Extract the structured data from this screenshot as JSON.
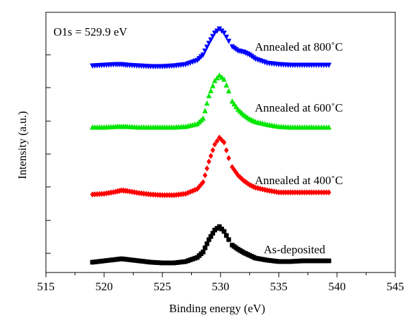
{
  "chart_data": {
    "type": "scatter",
    "title": "",
    "xlabel": "Binding energy (eV)",
    "ylabel": "Intensity (a.u.)",
    "xlim": [
      515,
      545
    ],
    "x_ticks": [
      "515",
      "520",
      "525",
      "530",
      "535",
      "540",
      "545"
    ],
    "y_tick_labels": false,
    "grid": false,
    "annotation": "O1s = 529.9 eV",
    "series": [
      {
        "name": "As-deposited",
        "color": "#000000",
        "marker": "square",
        "x": [
          519,
          520,
          521,
          521.5,
          522,
          523,
          524,
          525,
          526,
          527,
          528,
          528.5,
          529,
          529.5,
          529.9,
          530.3,
          530.7,
          531,
          531.5,
          532,
          532.5,
          533,
          534,
          535,
          536,
          537,
          538,
          539.3
        ],
        "y": [
          0.05,
          0.07,
          0.09,
          0.1,
          0.09,
          0.07,
          0.05,
          0.04,
          0.04,
          0.06,
          0.12,
          0.2,
          0.38,
          0.52,
          0.57,
          0.5,
          0.38,
          0.3,
          0.24,
          0.19,
          0.15,
          0.11,
          0.08,
          0.06,
          0.06,
          0.07,
          0.07,
          0.07
        ]
      },
      {
        "name": "Annealed at 400˚C",
        "color": "#ff0000",
        "marker": "diamond",
        "x": [
          519,
          520,
          521,
          521.5,
          522,
          523,
          524,
          525,
          526,
          527,
          528,
          528.5,
          529,
          529.5,
          529.9,
          530.3,
          530.7,
          531,
          531.5,
          532,
          532.5,
          533,
          534,
          535,
          536,
          537,
          538,
          539.3
        ],
        "y": [
          0.02,
          0.03,
          0.06,
          0.08,
          0.07,
          0.04,
          0.02,
          0.01,
          0.01,
          0.03,
          0.1,
          0.2,
          0.5,
          0.75,
          0.85,
          0.78,
          0.55,
          0.42,
          0.3,
          0.22,
          0.16,
          0.12,
          0.08,
          0.05,
          0.05,
          0.05,
          0.05,
          0.05
        ]
      },
      {
        "name": "Annealed at 600˚C",
        "color": "#00e600",
        "marker": "triangle-up",
        "x": [
          519,
          520,
          521,
          521.5,
          522,
          523,
          524,
          525,
          526,
          527,
          528,
          528.5,
          529,
          529.5,
          529.9,
          530.3,
          530.7,
          531,
          531.5,
          532,
          532.5,
          533,
          534,
          535,
          536,
          537,
          538,
          539.3
        ],
        "y": [
          0.02,
          0.02,
          0.03,
          0.03,
          0.03,
          0.02,
          0.02,
          0.02,
          0.02,
          0.03,
          0.07,
          0.15,
          0.48,
          0.7,
          0.78,
          0.72,
          0.55,
          0.4,
          0.28,
          0.2,
          0.14,
          0.1,
          0.06,
          0.03,
          0.02,
          0.02,
          0.02,
          0.02
        ]
      },
      {
        "name": "Annealed at 800˚C",
        "color": "#0000ff",
        "marker": "triangle-down",
        "x": [
          519,
          520,
          521,
          521.5,
          522,
          523,
          524,
          525,
          526,
          527,
          528,
          528.5,
          529,
          529.5,
          529.9,
          530.3,
          530.7,
          531,
          531.5,
          532,
          532.5,
          533,
          534,
          535,
          536,
          537,
          538,
          539.3
        ],
        "y": [
          0.02,
          0.03,
          0.04,
          0.04,
          0.03,
          0.02,
          0.01,
          0.01,
          0.02,
          0.04,
          0.1,
          0.18,
          0.35,
          0.5,
          0.56,
          0.5,
          0.38,
          0.3,
          0.24,
          0.22,
          0.18,
          0.12,
          0.06,
          0.04,
          0.03,
          0.03,
          0.03,
          0.03
        ]
      }
    ]
  }
}
